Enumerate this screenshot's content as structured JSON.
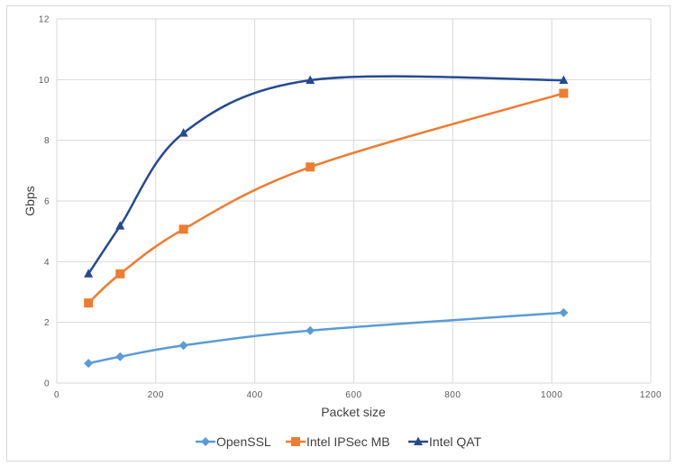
{
  "chart_data": {
    "type": "line",
    "title": "",
    "xlabel": "Packet size",
    "ylabel": "Gbps",
    "xlim": [
      0,
      1200
    ],
    "ylim": [
      0,
      12
    ],
    "xticks": [
      "0",
      "200",
      "400",
      "600",
      "800",
      "1000",
      "1200"
    ],
    "yticks": [
      "0",
      "2",
      "4",
      "6",
      "8",
      "10",
      "12"
    ],
    "grid": true,
    "legend_position": "bottom",
    "smoothed": true,
    "x": [
      64,
      128,
      256,
      512,
      1024
    ],
    "series": [
      {
        "name": "OpenSSL",
        "color": "#5b9bd5",
        "marker": "diamond",
        "values": [
          0.65,
          0.87,
          1.24,
          1.73,
          2.32
        ]
      },
      {
        "name": "Intel IPSec MB",
        "color": "#ed7d31",
        "marker": "square",
        "values": [
          2.64,
          3.6,
          5.07,
          7.12,
          9.55
        ]
      },
      {
        "name": "Intel QAT",
        "color": "#264a91",
        "marker": "triangle",
        "values": [
          3.6,
          5.18,
          8.24,
          9.98,
          9.98
        ]
      }
    ]
  }
}
